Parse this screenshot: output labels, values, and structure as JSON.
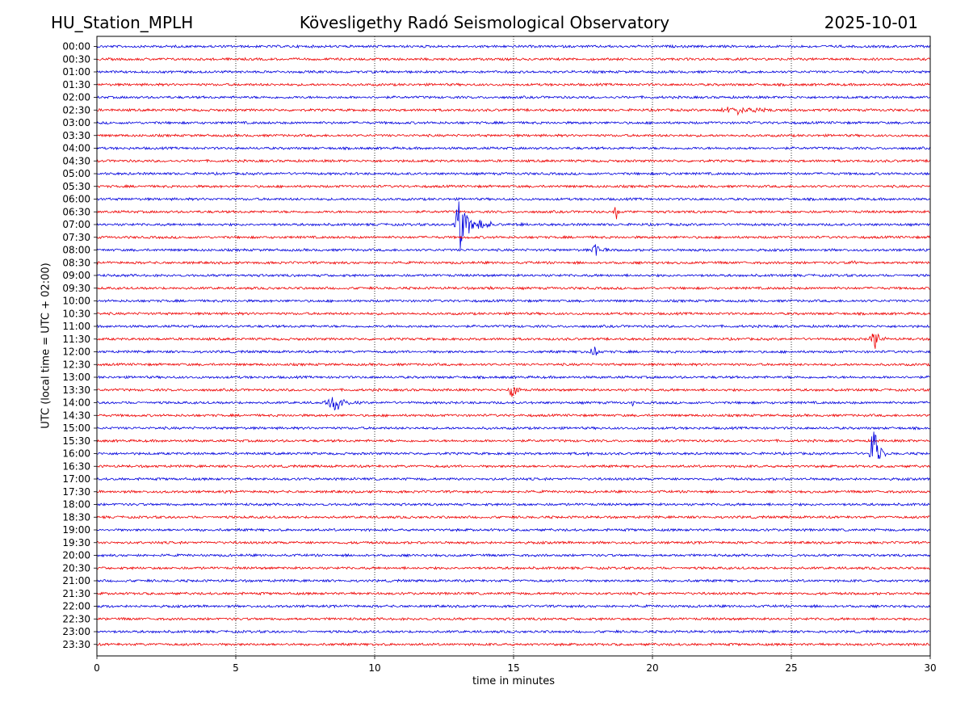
{
  "header": {
    "station": "HU_Station_MPLH",
    "observatory": "Kövesligethy Radó Seismological Observatory",
    "date": "2025-10-01"
  },
  "colors": {
    "trace_a": "#0000dd",
    "trace_b": "#ee0000",
    "grid": "#000000",
    "frame": "#000000"
  },
  "chart_data": {
    "type": "line",
    "title": "Kövesligethy Radó Seismological Observatory",
    "xlabel": "time in minutes",
    "ylabel": "UTC (local time = UTC + 02:00)",
    "xlim": [
      0,
      30
    ],
    "xticks": [
      0,
      5,
      10,
      15,
      20,
      25,
      30
    ],
    "xgrid": [
      5,
      10,
      15,
      20,
      25
    ],
    "rows": [
      "00:00",
      "00:30",
      "01:00",
      "01:30",
      "02:00",
      "02:30",
      "03:00",
      "03:30",
      "04:00",
      "04:30",
      "05:00",
      "05:30",
      "06:00",
      "06:30",
      "07:00",
      "07:30",
      "08:00",
      "08:30",
      "09:00",
      "09:30",
      "10:00",
      "10:30",
      "11:00",
      "11:30",
      "12:00",
      "12:30",
      "13:00",
      "13:30",
      "14:00",
      "14:30",
      "15:00",
      "15:30",
      "16:00",
      "16:30",
      "17:00",
      "17:30",
      "18:00",
      "18:30",
      "19:00",
      "19:30",
      "20:00",
      "20:30",
      "21:00",
      "21:30",
      "22:00",
      "22:30",
      "23:00",
      "23:30"
    ],
    "events": [
      {
        "row": "02:30",
        "start_min": 22.0,
        "end_min": 27.0,
        "peak_min": 23.0,
        "amplitude_rows": 0.45
      },
      {
        "row": "05:00",
        "start_min": 20.5,
        "end_min": 20.8,
        "peak_min": 20.6,
        "amplitude_rows": 0.35
      },
      {
        "row": "06:30",
        "start_min": 18.5,
        "end_min": 19.0,
        "peak_min": 18.7,
        "amplitude_rows": 0.7
      },
      {
        "row": "07:00",
        "start_min": 12.8,
        "end_min": 14.2,
        "peak_min": 13.1,
        "amplitude_rows": 2.8
      },
      {
        "row": "07:00",
        "start_min": 15.2,
        "end_min": 15.5,
        "peak_min": 15.3,
        "amplitude_rows": 0.5
      },
      {
        "row": "08:00",
        "start_min": 17.8,
        "end_min": 18.4,
        "peak_min": 18.0,
        "amplitude_rows": 1.1
      },
      {
        "row": "08:30",
        "start_min": 27.0,
        "end_min": 27.7,
        "peak_min": 27.3,
        "amplitude_rows": 0.25
      },
      {
        "row": "09:30",
        "start_min": 14.0,
        "end_min": 14.4,
        "peak_min": 14.2,
        "amplitude_rows": 0.25
      },
      {
        "row": "11:30",
        "start_min": 27.8,
        "end_min": 28.4,
        "peak_min": 28.0,
        "amplitude_rows": 1.3
      },
      {
        "row": "12:00",
        "start_min": 17.7,
        "end_min": 18.2,
        "peak_min": 17.9,
        "amplitude_rows": 1.0
      },
      {
        "row": "13:30",
        "start_min": 14.8,
        "end_min": 15.3,
        "peak_min": 15.0,
        "amplitude_rows": 2.2
      },
      {
        "row": "14:00",
        "start_min": 8.0,
        "end_min": 9.6,
        "peak_min": 8.7,
        "amplitude_rows": 0.9
      },
      {
        "row": "14:00",
        "start_min": 19.2,
        "end_min": 19.5,
        "peak_min": 19.3,
        "amplitude_rows": 0.35
      },
      {
        "row": "16:00",
        "start_min": 27.8,
        "end_min": 28.4,
        "peak_min": 28.0,
        "amplitude_rows": 3.4
      },
      {
        "row": "16:00",
        "start_min": 17.6,
        "end_min": 17.8,
        "peak_min": 17.7,
        "amplitude_rows": 0.4
      }
    ]
  }
}
